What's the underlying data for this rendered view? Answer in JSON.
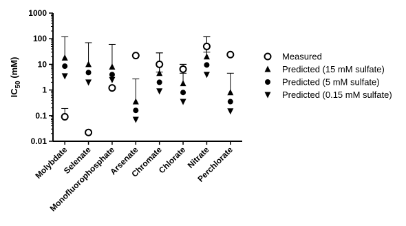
{
  "chart_data": {
    "type": "scatter",
    "ylabel_main": "IC",
    "ylabel_sub": "50",
    "ylabel_unit": " (mM)",
    "y_scale": "log",
    "ylim": [
      0.01,
      1000
    ],
    "y_ticks": [
      "0.01",
      "0.1",
      "1",
      "10",
      "100",
      "1000"
    ],
    "categories": [
      "Molybdate",
      "Selenate",
      "Monofluorophosphate",
      "Arsenate",
      "Chromate",
      "Chlorate",
      "Nitrate",
      "Perchlorate"
    ],
    "series": [
      {
        "name": "Measured",
        "marker": "open-circle",
        "values": [
          0.09,
          0.022,
          1.2,
          22,
          10,
          6.5,
          50,
          24
        ],
        "error_upper": [
          0.19,
          0.025,
          1.4,
          25,
          28,
          10,
          120,
          27
        ],
        "error_lower": [
          0.09,
          0.02,
          1.1,
          20,
          5,
          4.5,
          30,
          22
        ]
      },
      {
        "name": "Predicted (15 mM sulfate)",
        "marker": "triangle-up",
        "values": [
          18,
          10,
          8,
          0.35,
          4.5,
          1.8,
          20,
          0.8
        ],
        "error_upper": [
          120,
          70,
          60,
          2.7,
          28,
          10,
          120,
          4.5
        ]
      },
      {
        "name": "Predicted (5 mM sulfate)",
        "marker": "filled-circle",
        "values": [
          8.5,
          4.8,
          4,
          0.16,
          2,
          0.8,
          9.5,
          0.35
        ]
      },
      {
        "name": "Predicted (0.15 mM sulfate)",
        "marker": "triangle-down",
        "values": [
          3.5,
          2,
          2.5,
          0.07,
          0.9,
          0.35,
          4,
          0.15
        ]
      }
    ],
    "legend_position": "right"
  }
}
